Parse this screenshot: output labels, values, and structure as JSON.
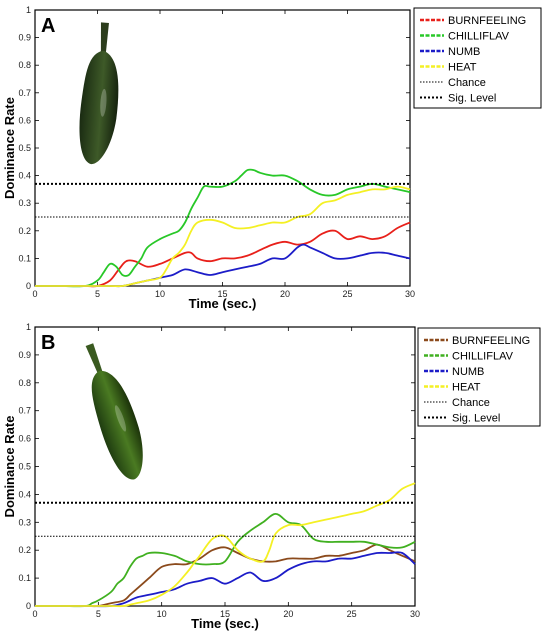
{
  "chart_data": [
    {
      "type": "line",
      "panel_label": "A",
      "xlabel": "Time (sec.)",
      "ylabel": "Dominance Rate",
      "xlim": [
        0,
        30
      ],
      "ylim": [
        0,
        1
      ],
      "xticks": [
        "0",
        "5",
        "10",
        "15",
        "20",
        "25",
        "30"
      ],
      "yticks": [
        "0",
        "0.1",
        "0.2",
        "0.3",
        "0.4",
        "0.5",
        "0.6",
        "0.7",
        "0.8",
        "0.9",
        "1"
      ],
      "legend_position": "outside-right-top",
      "series": [
        {
          "name": "BURNFEELING",
          "color": "#e8201a",
          "x": [
            0,
            2,
            4,
            5,
            6,
            6.7,
            7.3,
            8,
            9,
            10,
            11,
            12,
            12.5,
            13,
            14,
            15,
            16,
            17,
            18,
            19,
            20,
            21,
            22,
            23,
            24,
            25,
            26,
            27,
            28,
            29,
            30
          ],
          "y": [
            0,
            0,
            0,
            0,
            0.02,
            0.06,
            0.09,
            0.09,
            0.07,
            0.08,
            0.1,
            0.12,
            0.12,
            0.1,
            0.09,
            0.1,
            0.1,
            0.11,
            0.13,
            0.15,
            0.16,
            0.15,
            0.16,
            0.19,
            0.2,
            0.17,
            0.18,
            0.17,
            0.18,
            0.21,
            0.23
          ]
        },
        {
          "name": "CHILLIFLAV",
          "color": "#28c828",
          "x": [
            0,
            2,
            4,
            5,
            5.5,
            6,
            6.5,
            7,
            7.5,
            8,
            8.5,
            9,
            10,
            11,
            11.5,
            12,
            12.5,
            13,
            13.5,
            14,
            15,
            16,
            16.5,
            17,
            17.5,
            18,
            19,
            20,
            21,
            22,
            23,
            24,
            25,
            26,
            27,
            28,
            29,
            30
          ],
          "y": [
            0,
            0,
            0,
            0.02,
            0.05,
            0.08,
            0.07,
            0.04,
            0.04,
            0.07,
            0.1,
            0.14,
            0.17,
            0.19,
            0.2,
            0.23,
            0.28,
            0.32,
            0.36,
            0.36,
            0.36,
            0.38,
            0.4,
            0.42,
            0.42,
            0.41,
            0.4,
            0.4,
            0.38,
            0.35,
            0.33,
            0.33,
            0.35,
            0.36,
            0.37,
            0.36,
            0.35,
            0.34
          ]
        },
        {
          "name": "NUMB",
          "color": "#1c1cc8",
          "x": [
            0,
            2,
            4,
            6,
            7,
            8,
            9,
            10,
            11,
            12,
            13,
            14,
            15,
            16,
            17,
            18,
            19,
            20,
            21,
            21.5,
            22,
            23,
            24,
            25,
            26,
            27,
            28,
            29,
            30
          ],
          "y": [
            0,
            0,
            0,
            0,
            0,
            0.01,
            0.02,
            0.03,
            0.04,
            0.06,
            0.05,
            0.04,
            0.05,
            0.06,
            0.07,
            0.08,
            0.1,
            0.1,
            0.14,
            0.15,
            0.14,
            0.12,
            0.1,
            0.1,
            0.11,
            0.12,
            0.12,
            0.11,
            0.1
          ]
        },
        {
          "name": "HEAT",
          "color": "#f4f024",
          "x": [
            0,
            2,
            4,
            6,
            7,
            8,
            9,
            10,
            10.5,
            11,
            11.5,
            12,
            12.5,
            13,
            14,
            15,
            16,
            17,
            18,
            19,
            20,
            21,
            22,
            23,
            24,
            25,
            26,
            27,
            28,
            29,
            30
          ],
          "y": [
            0,
            0,
            0,
            0,
            0,
            0.01,
            0.02,
            0.03,
            0.06,
            0.1,
            0.12,
            0.15,
            0.2,
            0.23,
            0.24,
            0.23,
            0.21,
            0.21,
            0.22,
            0.23,
            0.23,
            0.25,
            0.26,
            0.3,
            0.31,
            0.33,
            0.34,
            0.35,
            0.35,
            0.36,
            0.35
          ]
        },
        {
          "name": "Chance",
          "color": "#000000",
          "x": [
            0,
            30
          ],
          "y": [
            0.25,
            0.25
          ]
        },
        {
          "name": "Sig. Level",
          "color": "#000000",
          "x": [
            0,
            30
          ],
          "y": [
            0.37,
            0.37
          ]
        }
      ]
    },
    {
      "type": "line",
      "panel_label": "B",
      "xlabel": "Time (sec.)",
      "ylabel": "Dominance Rate",
      "xlim": [
        0,
        30
      ],
      "ylim": [
        0,
        1
      ],
      "xticks": [
        "0",
        "5",
        "10",
        "15",
        "20",
        "25",
        "30"
      ],
      "yticks": [
        "0",
        "0.1",
        "0.2",
        "0.3",
        "0.4",
        "0.5",
        "0.6",
        "0.7",
        "0.8",
        "0.9",
        "1"
      ],
      "legend_position": "outside-right-top",
      "series": [
        {
          "name": "BURNFEELING",
          "color": "#8b4a1c",
          "x": [
            0,
            2,
            4,
            5,
            6,
            7,
            7.5,
            8,
            9,
            10,
            11,
            12,
            13,
            14,
            15,
            16,
            17,
            18,
            19,
            20,
            21,
            22,
            23,
            24,
            25,
            26,
            27,
            28,
            29,
            30
          ],
          "y": [
            0,
            0,
            0,
            0,
            0.01,
            0.02,
            0.04,
            0.06,
            0.1,
            0.14,
            0.15,
            0.15,
            0.17,
            0.2,
            0.21,
            0.19,
            0.17,
            0.16,
            0.16,
            0.17,
            0.17,
            0.17,
            0.18,
            0.18,
            0.19,
            0.2,
            0.22,
            0.2,
            0.18,
            0.16
          ]
        },
        {
          "name": "CHILLIFLAV",
          "color": "#40b020",
          "x": [
            0,
            2,
            4,
            4.5,
            5,
            6,
            6.5,
            7,
            7.5,
            8,
            8.5,
            9,
            10,
            11,
            11.5,
            12,
            13,
            14,
            15,
            16,
            17,
            18,
            19,
            20,
            21,
            22,
            23,
            24,
            25,
            26,
            27,
            28,
            29,
            30
          ],
          "y": [
            0,
            0,
            0,
            0.01,
            0.02,
            0.05,
            0.08,
            0.1,
            0.14,
            0.17,
            0.18,
            0.19,
            0.19,
            0.18,
            0.17,
            0.16,
            0.15,
            0.15,
            0.16,
            0.23,
            0.27,
            0.3,
            0.33,
            0.3,
            0.29,
            0.24,
            0.23,
            0.23,
            0.23,
            0.23,
            0.22,
            0.21,
            0.21,
            0.23
          ]
        },
        {
          "name": "NUMB",
          "color": "#1c1cc8",
          "x": [
            0,
            2,
            4,
            6,
            7,
            8,
            9,
            10,
            11,
            12,
            13,
            14,
            15,
            16,
            17,
            18,
            19,
            20,
            21,
            22,
            23,
            24,
            25,
            26,
            27,
            28,
            29,
            30
          ],
          "y": [
            0,
            0,
            0,
            0,
            0.01,
            0.03,
            0.04,
            0.05,
            0.06,
            0.08,
            0.09,
            0.1,
            0.08,
            0.1,
            0.12,
            0.09,
            0.1,
            0.13,
            0.15,
            0.16,
            0.16,
            0.17,
            0.17,
            0.18,
            0.19,
            0.19,
            0.19,
            0.15
          ]
        },
        {
          "name": "HEAT",
          "color": "#f4f024",
          "x": [
            0,
            2,
            4,
            6,
            7,
            8,
            9,
            10,
            11,
            12,
            12.5,
            13,
            14,
            15,
            16,
            17,
            18,
            18.5,
            19,
            20,
            21,
            22,
            23,
            24,
            25,
            26,
            27,
            28,
            29,
            30
          ],
          "y": [
            0,
            0,
            0,
            0,
            0,
            0.01,
            0.02,
            0.04,
            0.07,
            0.12,
            0.15,
            0.18,
            0.24,
            0.25,
            0.2,
            0.17,
            0.16,
            0.2,
            0.26,
            0.29,
            0.29,
            0.3,
            0.31,
            0.32,
            0.33,
            0.34,
            0.36,
            0.38,
            0.42,
            0.44
          ]
        },
        {
          "name": "Chance",
          "color": "#000000",
          "x": [
            0,
            30
          ],
          "y": [
            0.25,
            0.25
          ]
        },
        {
          "name": "Sig. Level",
          "color": "#000000",
          "x": [
            0,
            30
          ],
          "y": [
            0.37,
            0.37
          ]
        }
      ]
    }
  ]
}
